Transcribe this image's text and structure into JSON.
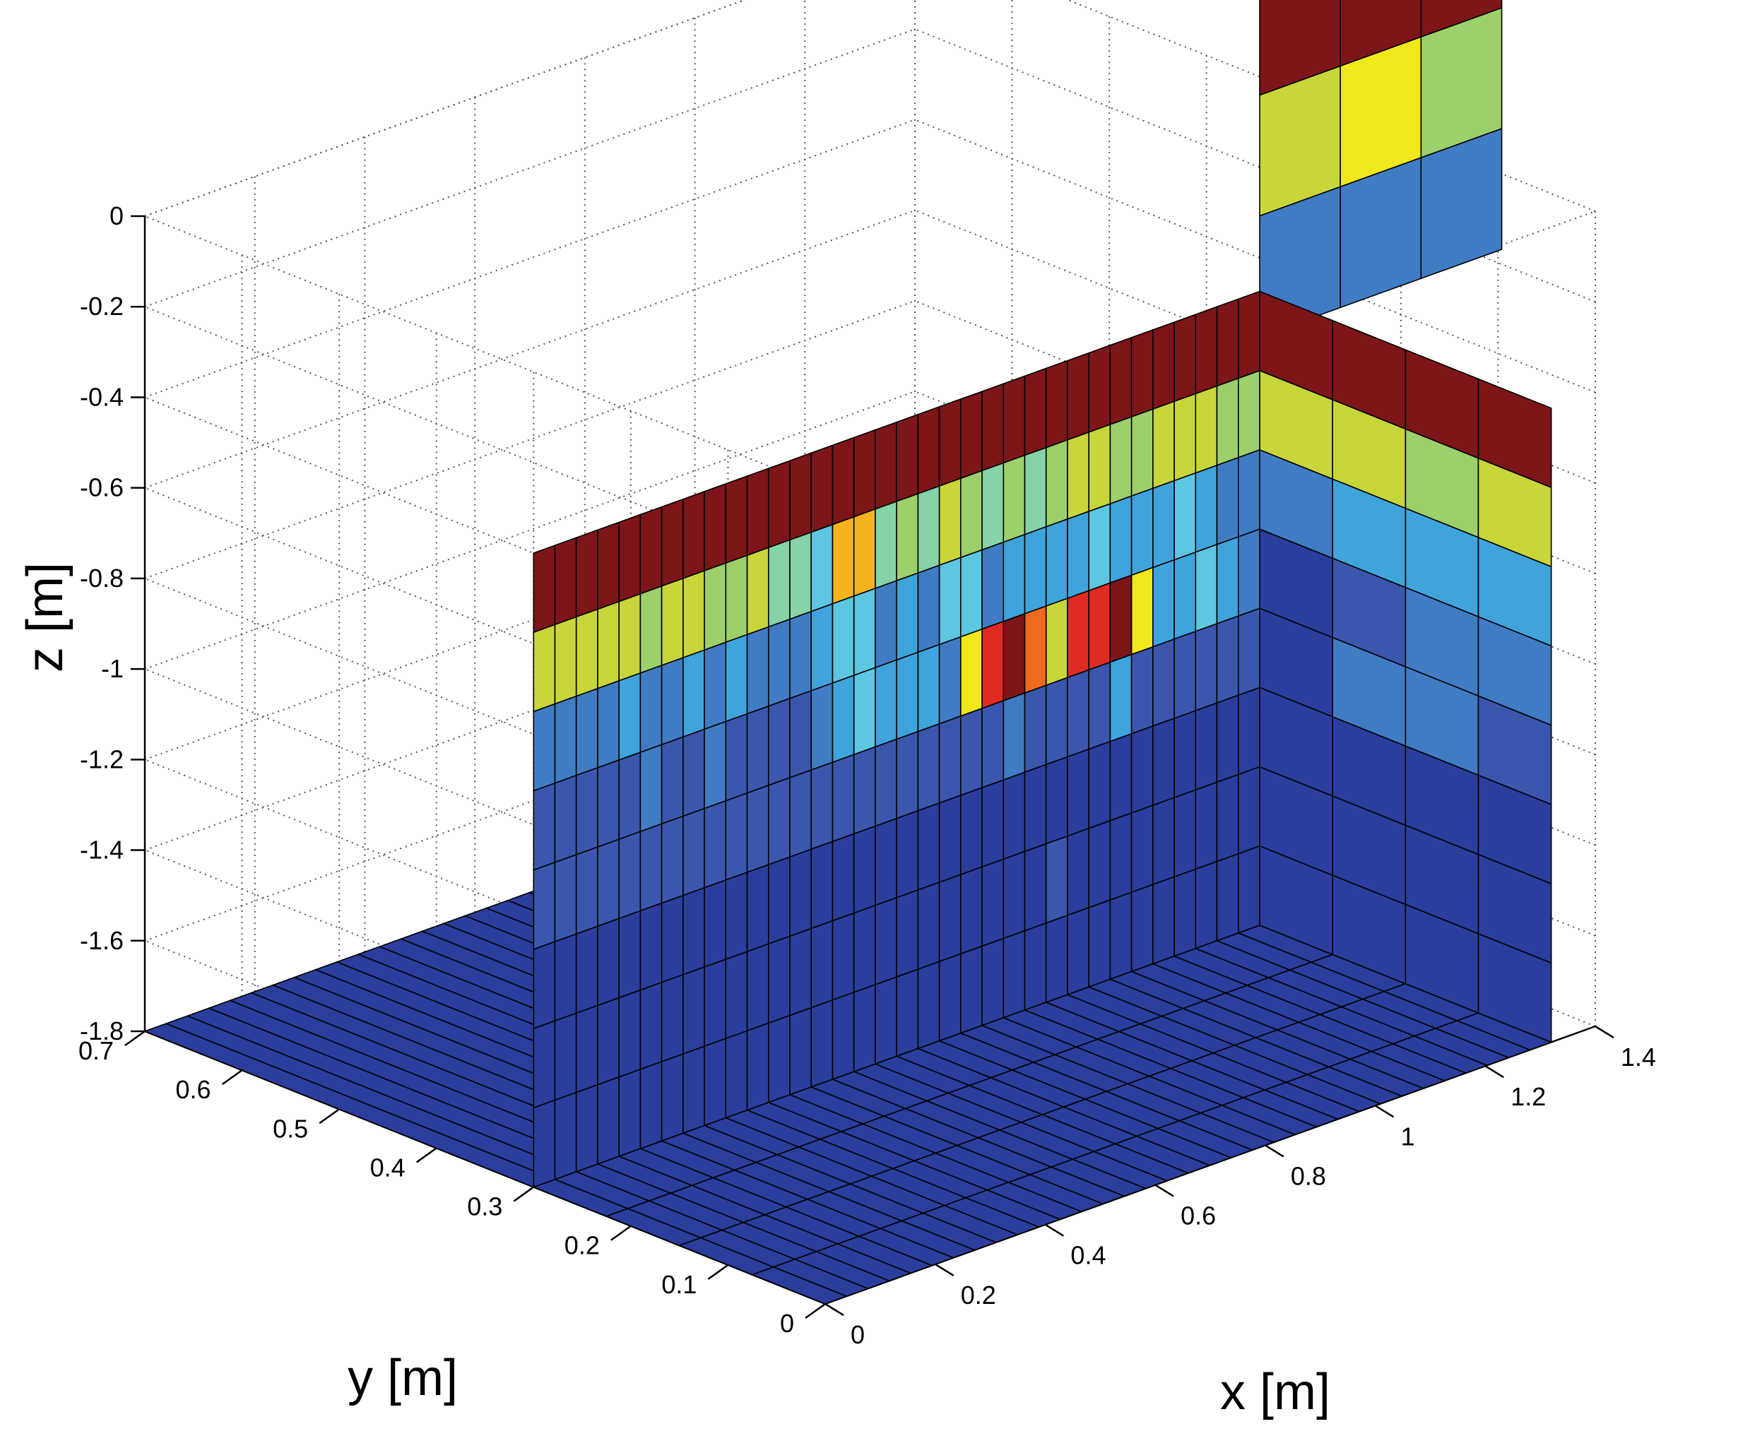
{
  "chart_data": {
    "type": "heatmap",
    "subtype": "3d-slice",
    "title": "",
    "xlabel": "x [m]",
    "ylabel": "y [m]",
    "zlabel": "z [m]",
    "xlim": [
      0,
      1.4
    ],
    "ylim": [
      0,
      0.7
    ],
    "zlim": [
      -1.8,
      0
    ],
    "x_ticks": [
      "0",
      "0.2",
      "0.4",
      "0.6",
      "0.8",
      "1",
      "1.2",
      "1.4"
    ],
    "y_ticks": [
      "0",
      "0.1",
      "0.2",
      "0.3",
      "0.4",
      "0.5",
      "0.6",
      "0.7"
    ],
    "z_ticks": [
      "0",
      "-0.2",
      "-0.4",
      "-0.6",
      "-0.8",
      "-1",
      "-1.2",
      "-1.4",
      "-1.6",
      "-1.8"
    ],
    "grid": true,
    "colormap": "jet",
    "colormap_colors": [
      "#2b3e9e",
      "#3a57ad",
      "#3f7cc4",
      "#3fa3dc",
      "#5dc6e0",
      "#86d3a8",
      "#9cd06a",
      "#c8d63a",
      "#f0e81a",
      "#f5b41d",
      "#f06a1e",
      "#e02a22",
      "#7e1518"
    ],
    "slices": [
      {
        "name": "front",
        "plane": "y",
        "y": 0.3,
        "x_range": [
          0,
          1.32
        ],
        "z_range": [
          -1.8,
          -0.4
        ],
        "columns": 34,
        "rows": 8,
        "values": [
          [
            12,
            12,
            12,
            12,
            12,
            12,
            12,
            12,
            12,
            12,
            12,
            12,
            12,
            12,
            12,
            12,
            12,
            12,
            12,
            12,
            12,
            12,
            12,
            12,
            12,
            12,
            12,
            12,
            12,
            12,
            12,
            12,
            12,
            12
          ],
          [
            7,
            7,
            7,
            7,
            7,
            6,
            7,
            7,
            6,
            6,
            7,
            5,
            5,
            4,
            9,
            9,
            5,
            6,
            5,
            7,
            6,
            5,
            6,
            5,
            6,
            7,
            7,
            6,
            6,
            7,
            7,
            7,
            6,
            6
          ],
          [
            2,
            2,
            2,
            2,
            3,
            2,
            2,
            3,
            2,
            3,
            2,
            2,
            2,
            3,
            4,
            4,
            2,
            3,
            2,
            4,
            4,
            2,
            3,
            3,
            3,
            3,
            4,
            3,
            3,
            3,
            4,
            3,
            2,
            2
          ],
          [
            1,
            1,
            1,
            1,
            1,
            2,
            1,
            1,
            2,
            1,
            1,
            1,
            1,
            2,
            3,
            4,
            3,
            3,
            3,
            2,
            8,
            11,
            12,
            10,
            7,
            11,
            11,
            12,
            8,
            3,
            3,
            4,
            3,
            2
          ],
          [
            1,
            1,
            1,
            1,
            1,
            1,
            1,
            1,
            1,
            1,
            1,
            1,
            1,
            1,
            1,
            1,
            1,
            1,
            1,
            1,
            1,
            1,
            2,
            1,
            1,
            1,
            1,
            3,
            1,
            1,
            1,
            1,
            1,
            1
          ],
          [
            0,
            0,
            0,
            0,
            0,
            0,
            0,
            0,
            0,
            0,
            0,
            0,
            0,
            0,
            0,
            0,
            0,
            0,
            0,
            0,
            0,
            0,
            0,
            0,
            0,
            0,
            0,
            0,
            0,
            0,
            0,
            0,
            0,
            0
          ],
          [
            0,
            0,
            0,
            0,
            0,
            0,
            0,
            0,
            0,
            0,
            0,
            0,
            0,
            0,
            0,
            0,
            0,
            0,
            0,
            0,
            0,
            0,
            0,
            0,
            1,
            0,
            0,
            0,
            0,
            0,
            0,
            0,
            0,
            0
          ],
          [
            0,
            0,
            0,
            0,
            0,
            0,
            0,
            0,
            0,
            0,
            0,
            0,
            0,
            0,
            0,
            0,
            0,
            0,
            0,
            0,
            0,
            0,
            0,
            0,
            0,
            0,
            0,
            0,
            0,
            0,
            0,
            0,
            0,
            0
          ]
        ]
      },
      {
        "name": "side",
        "plane": "x",
        "x": 1.32,
        "y_range": [
          0,
          0.3
        ],
        "z_range": [
          -1.8,
          -0.4
        ],
        "columns": 4,
        "rows": 8,
        "values": [
          [
            12,
            12,
            12,
            12
          ],
          [
            7,
            7,
            6,
            7
          ],
          [
            2,
            3,
            3,
            3
          ],
          [
            0,
            1,
            2,
            2
          ],
          [
            0,
            2,
            2,
            1
          ],
          [
            0,
            0,
            0,
            0
          ],
          [
            0,
            0,
            0,
            0
          ],
          [
            0,
            0,
            0,
            0
          ]
        ]
      },
      {
        "name": "back",
        "plane": "y",
        "y": 0.3,
        "x_range": [
          1.32,
          1.76
        ],
        "z_range": [
          -0.5,
          0.3
        ],
        "columns": 3,
        "rows": 3,
        "values": [
          [
            12,
            12,
            12
          ],
          [
            7,
            8,
            6
          ],
          [
            2,
            2,
            2
          ]
        ]
      },
      {
        "name": "bottom",
        "plane": "z",
        "z": -1.8,
        "x_range": [
          0,
          1.32
        ],
        "y_range": [
          0.3,
          0.7
        ],
        "columns": 34,
        "rows": 1,
        "values": [
          [
            0,
            0,
            0,
            0,
            0,
            0,
            0,
            0,
            0,
            0,
            0,
            0,
            0,
            0,
            0,
            0,
            0,
            0,
            0,
            0,
            0,
            0,
            0,
            0,
            0,
            0,
            0,
            0,
            3,
            12,
            12,
            12,
            12,
            12
          ]
        ]
      },
      {
        "name": "floor",
        "plane": "z",
        "z": -1.8,
        "x_range": [
          0,
          1.32
        ],
        "y_range": [
          0,
          0.3
        ],
        "columns": 34,
        "rows": 4,
        "values": [
          [
            0,
            0,
            0,
            0,
            0,
            0,
            0,
            0,
            0,
            0,
            0,
            0,
            0,
            0,
            0,
            0,
            0,
            0,
            0,
            0,
            0,
            0,
            0,
            0,
            0,
            0,
            0,
            0,
            0,
            0,
            0,
            0,
            0,
            0
          ],
          [
            0,
            0,
            0,
            0,
            0,
            0,
            0,
            0,
            0,
            0,
            0,
            0,
            0,
            0,
            0,
            0,
            0,
            0,
            0,
            0,
            0,
            0,
            0,
            0,
            0,
            0,
            0,
            0,
            0,
            0,
            0,
            0,
            0,
            0
          ],
          [
            0,
            0,
            0,
            0,
            0,
            0,
            0,
            0,
            0,
            0,
            0,
            0,
            0,
            0,
            0,
            0,
            0,
            0,
            0,
            0,
            0,
            0,
            0,
            0,
            0,
            0,
            0,
            0,
            0,
            0,
            0,
            0,
            0,
            0
          ],
          [
            0,
            0,
            0,
            0,
            0,
            0,
            0,
            0,
            0,
            0,
            0,
            0,
            0,
            0,
            0,
            0,
            0,
            0,
            0,
            0,
            0,
            0,
            0,
            0,
            0,
            0,
            0,
            0,
            0,
            0,
            0,
            0,
            0,
            0
          ]
        ]
      }
    ]
  }
}
